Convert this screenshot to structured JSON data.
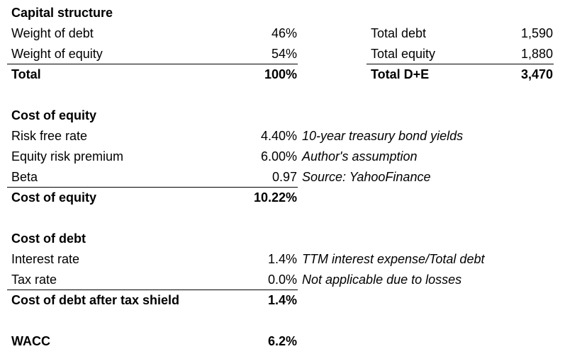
{
  "capital_structure": {
    "title": "Capital structure",
    "rows": [
      {
        "label": "Weight of debt",
        "value": "46%"
      },
      {
        "label": "Weight of equity",
        "value": "54%"
      }
    ],
    "total": {
      "label": "Total",
      "value": "100%"
    },
    "side_rows": [
      {
        "label": "Total debt",
        "value": "1,590"
      },
      {
        "label": "Total equity",
        "value": "1,880"
      }
    ],
    "side_total": {
      "label": "Total D+E",
      "value": "3,470"
    }
  },
  "cost_of_equity": {
    "title": "Cost of equity",
    "rows": [
      {
        "label": "Risk free rate",
        "value": "4.40%",
        "note": "10-year treasury bond yields"
      },
      {
        "label": "Equity risk premium",
        "value": "6.00%",
        "note": "Author's assumption"
      },
      {
        "label": "Beta",
        "value": "0.97",
        "note": "Source: YahooFinance"
      }
    ],
    "total": {
      "label": "Cost of equity",
      "value": "10.22%"
    }
  },
  "cost_of_debt": {
    "title": "Cost of debt",
    "rows": [
      {
        "label": "Interest rate",
        "value": "1.4%",
        "note": "TTM interest expense/Total debt"
      },
      {
        "label": "Tax rate",
        "value": "0.0%",
        "note": "Not applicable due to losses"
      }
    ],
    "total": {
      "label": "Cost of debt after tax shield",
      "value": "1.4%"
    }
  },
  "wacc": {
    "label": "WACC",
    "value": "6.2%"
  }
}
